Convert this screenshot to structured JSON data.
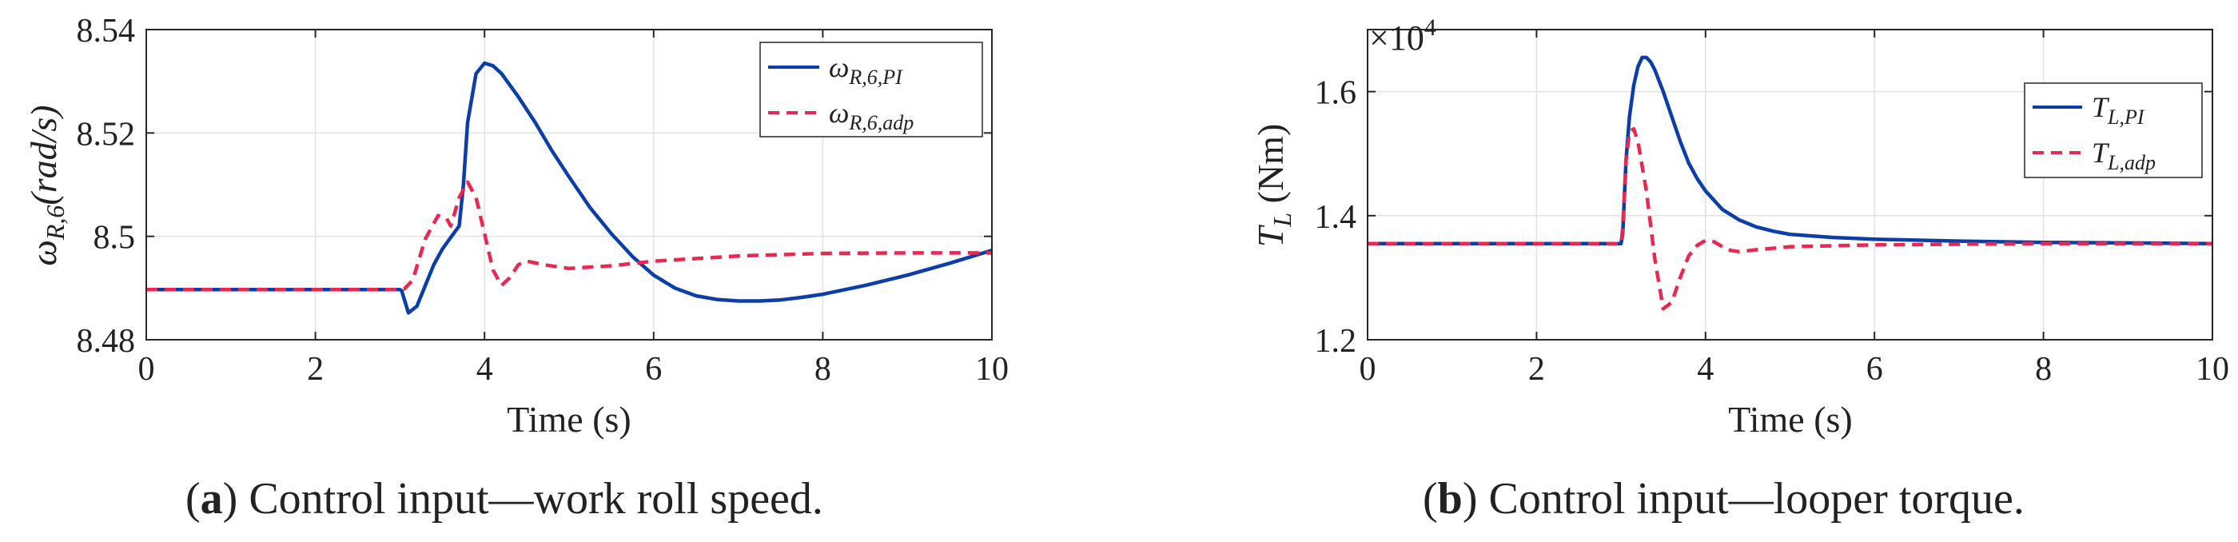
{
  "chart_data": [
    {
      "type": "line",
      "panel_label": "a",
      "caption": "Control input—work roll speed.",
      "xlabel": "Time (s)",
      "ylabel": "ωR,6(rad/s)",
      "xlim": [
        0,
        10
      ],
      "ylim": [
        8.48,
        8.54
      ],
      "xticks": [
        "0",
        "2",
        "4",
        "6",
        "8",
        "10"
      ],
      "yticks": [
        "8.48",
        "8.5",
        "8.52",
        "8.54"
      ],
      "grid": true,
      "legend_position": "top-right",
      "series": [
        {
          "name": "ωR,6,PI",
          "color": "#0b3ea8",
          "style": "solid",
          "x": [
            0,
            1,
            2,
            3,
            3.02,
            3.1,
            3.2,
            3.3,
            3.4,
            3.5,
            3.6,
            3.7,
            3.75,
            3.8,
            3.9,
            4.0,
            4.1,
            4.2,
            4.4,
            4.6,
            4.8,
            5.0,
            5.25,
            5.5,
            5.75,
            6.0,
            6.25,
            6.5,
            6.75,
            7.0,
            7.25,
            7.5,
            7.75,
            8.0,
            8.5,
            9.0,
            9.5,
            10.0
          ],
          "y": [
            8.4897,
            8.4897,
            8.4897,
            8.4897,
            8.4895,
            8.4852,
            8.4865,
            8.4905,
            8.4945,
            8.4975,
            8.4998,
            8.502,
            8.51,
            8.522,
            8.5315,
            8.5335,
            8.533,
            8.5315,
            8.527,
            8.522,
            8.5165,
            8.5115,
            8.5055,
            8.5005,
            8.4961,
            8.4925,
            8.49,
            8.4885,
            8.4878,
            8.4875,
            8.4875,
            8.4877,
            8.4882,
            8.4888,
            8.4905,
            8.4925,
            8.4948,
            8.4973
          ]
        },
        {
          "name": "ωR,6,adp",
          "color": "#e8284f",
          "style": "dashed",
          "x": [
            0,
            1,
            2,
            3,
            3.05,
            3.15,
            3.3,
            3.45,
            3.55,
            3.6,
            3.7,
            3.8,
            3.9,
            4.0,
            4.1,
            4.2,
            4.3,
            4.4,
            4.5,
            4.7,
            5.0,
            5.5,
            6.0,
            7.0,
            8.0,
            9.0,
            10.0
          ],
          "y": [
            8.4897,
            8.4897,
            8.4897,
            8.4897,
            8.4898,
            8.4915,
            8.4995,
            8.504,
            8.5035,
            8.502,
            8.5075,
            8.5105,
            8.5075,
            8.5005,
            8.4935,
            8.4905,
            8.492,
            8.4945,
            8.4952,
            8.4945,
            8.4938,
            8.4943,
            8.4952,
            8.4962,
            8.4967,
            8.4968,
            8.4968
          ]
        }
      ]
    },
    {
      "type": "line",
      "panel_label": "b",
      "caption": "Control input—looper torque.",
      "xlabel": "Time (s)",
      "ylabel": "TL (Nm)",
      "multiplier": "×10",
      "multiplier_exponent": "4",
      "xlim": [
        0,
        10
      ],
      "ylim": [
        1.2,
        1.7
      ],
      "xticks": [
        "0",
        "2",
        "4",
        "6",
        "8",
        "10"
      ],
      "yticks": [
        "1.2",
        "1.4",
        "1.6"
      ],
      "grid": true,
      "legend_position": "top-right",
      "series": [
        {
          "name": "TL,PI",
          "color": "#0b3ea8",
          "style": "solid",
          "x": [
            0,
            1,
            2,
            3,
            3.02,
            3.06,
            3.1,
            3.15,
            3.2,
            3.25,
            3.3,
            3.35,
            3.4,
            3.5,
            3.6,
            3.7,
            3.8,
            3.9,
            4.0,
            4.2,
            4.4,
            4.6,
            4.8,
            5.0,
            5.5,
            6.0,
            7.0,
            8.0,
            9.0,
            10.0
          ],
          "y": [
            1.355,
            1.355,
            1.355,
            1.355,
            1.37,
            1.49,
            1.56,
            1.61,
            1.64,
            1.655,
            1.655,
            1.648,
            1.635,
            1.6,
            1.56,
            1.52,
            1.485,
            1.46,
            1.44,
            1.41,
            1.393,
            1.382,
            1.375,
            1.37,
            1.365,
            1.362,
            1.359,
            1.357,
            1.356,
            1.355
          ]
        },
        {
          "name": "TL,adp",
          "color": "#e8284f",
          "style": "dashed",
          "x": [
            0,
            1,
            2,
            3,
            3.02,
            3.06,
            3.1,
            3.15,
            3.2,
            3.3,
            3.4,
            3.5,
            3.6,
            3.7,
            3.8,
            3.9,
            4.0,
            4.1,
            4.2,
            4.3,
            4.4,
            4.6,
            5.0,
            6.0,
            7.0,
            8.0,
            9.0,
            10.0
          ],
          "y": [
            1.355,
            1.355,
            1.355,
            1.355,
            1.38,
            1.49,
            1.535,
            1.54,
            1.52,
            1.44,
            1.33,
            1.25,
            1.26,
            1.3,
            1.335,
            1.352,
            1.36,
            1.358,
            1.35,
            1.344,
            1.342,
            1.345,
            1.35,
            1.353,
            1.354,
            1.355,
            1.355,
            1.355
          ]
        }
      ]
    }
  ]
}
